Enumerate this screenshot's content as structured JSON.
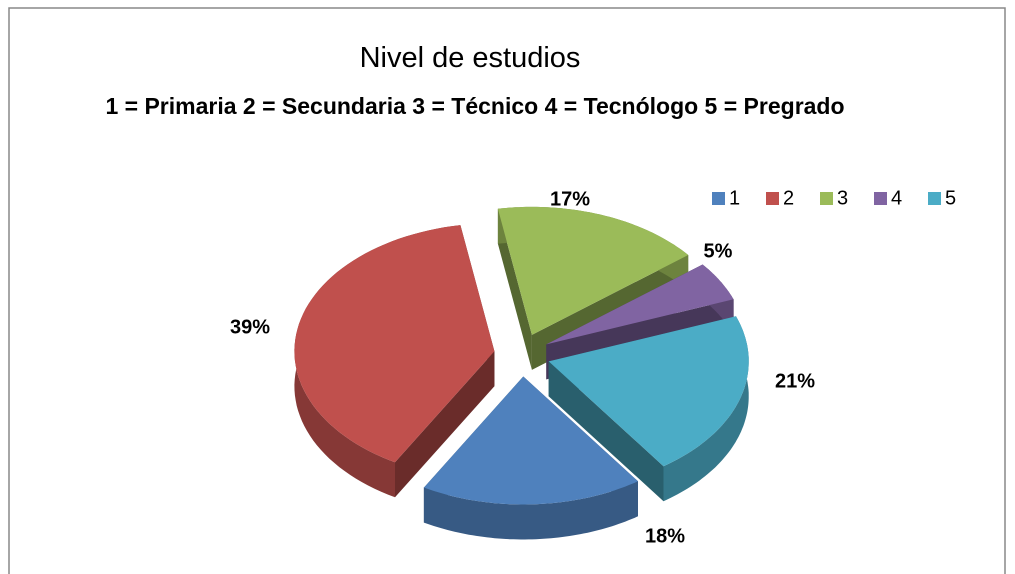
{
  "chart_data": {
    "type": "pie",
    "title": "Nivel de  estudios",
    "subtitle": "1 = Primaria  2 = Secundaria   3 =  Técnico  4 = Tecnólogo  5 = Pregrado",
    "categories": [
      "1",
      "2",
      "3",
      "4",
      "5"
    ],
    "values": [
      18,
      39,
      17,
      5,
      21
    ],
    "value_labels": [
      "18%",
      "39%",
      "17%",
      "5%",
      "21%"
    ],
    "colors": [
      "#4f81bd",
      "#c0504d",
      "#9bbb59",
      "#8064a2",
      "#4bacc6"
    ],
    "legend": "top-right",
    "exploded": true,
    "three_d": true
  }
}
